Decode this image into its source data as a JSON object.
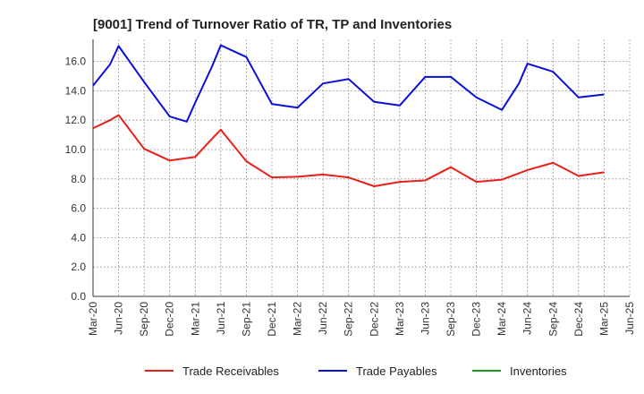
{
  "chart_data": {
    "type": "line",
    "title": "[9001]  Trend of Turnover Ratio of TR, TP and Inventories",
    "ylim": [
      0,
      17.5
    ],
    "yticks": [
      "0.0",
      "2.0",
      "4.0",
      "6.0",
      "8.0",
      "10.0",
      "12.0",
      "14.0",
      "16.0"
    ],
    "ytick_values": [
      0,
      2,
      4,
      6,
      8,
      10,
      12,
      14,
      16
    ],
    "categories": [
      "Mar-20",
      "Jun-20",
      "Sep-20",
      "Dec-20",
      "Mar-21",
      "Jun-21",
      "Sep-21",
      "Dec-21",
      "Mar-22",
      "Jun-22",
      "Sep-22",
      "Dec-22",
      "Mar-23",
      "Jun-23",
      "Sep-23",
      "Dec-23",
      "Mar-24",
      "Jun-24",
      "Sep-24",
      "Dec-24",
      "Mar-25",
      "Jun-25"
    ],
    "grid": true,
    "legend_position": "bottom",
    "series": [
      {
        "name": "Trade Receivables",
        "color": "#e8201a",
        "x": [
          0,
          0.667,
          1,
          2,
          3,
          4,
          4.667,
          5,
          6,
          7,
          8,
          9,
          10,
          11,
          12,
          13,
          14,
          15,
          16,
          17,
          18,
          19,
          20
        ],
        "values": [
          11.45,
          12.0,
          12.35,
          10.05,
          9.25,
          9.5,
          10.75,
          11.35,
          9.2,
          8.1,
          8.15,
          8.3,
          8.1,
          7.5,
          7.8,
          7.9,
          8.8,
          7.8,
          7.95,
          8.6,
          9.1,
          8.2,
          8.45
        ]
      },
      {
        "name": "Trade Payables",
        "color": "#0a10d8",
        "x": [
          0,
          0.667,
          1,
          2,
          3,
          3.667,
          4,
          4.667,
          5,
          6,
          7,
          8,
          9,
          10,
          11,
          12,
          13,
          14,
          15,
          16,
          16.667,
          17,
          18,
          19,
          20
        ],
        "values": [
          14.35,
          15.8,
          17.05,
          14.6,
          12.25,
          11.9,
          13.2,
          15.7,
          17.1,
          16.3,
          13.1,
          12.85,
          14.5,
          14.8,
          13.25,
          13.0,
          14.95,
          14.95,
          13.55,
          12.7,
          14.5,
          15.85,
          15.3,
          13.55,
          13.75
        ]
      },
      {
        "name": "Inventories",
        "color": "#1e9a1e",
        "x": [],
        "values": []
      }
    ]
  }
}
